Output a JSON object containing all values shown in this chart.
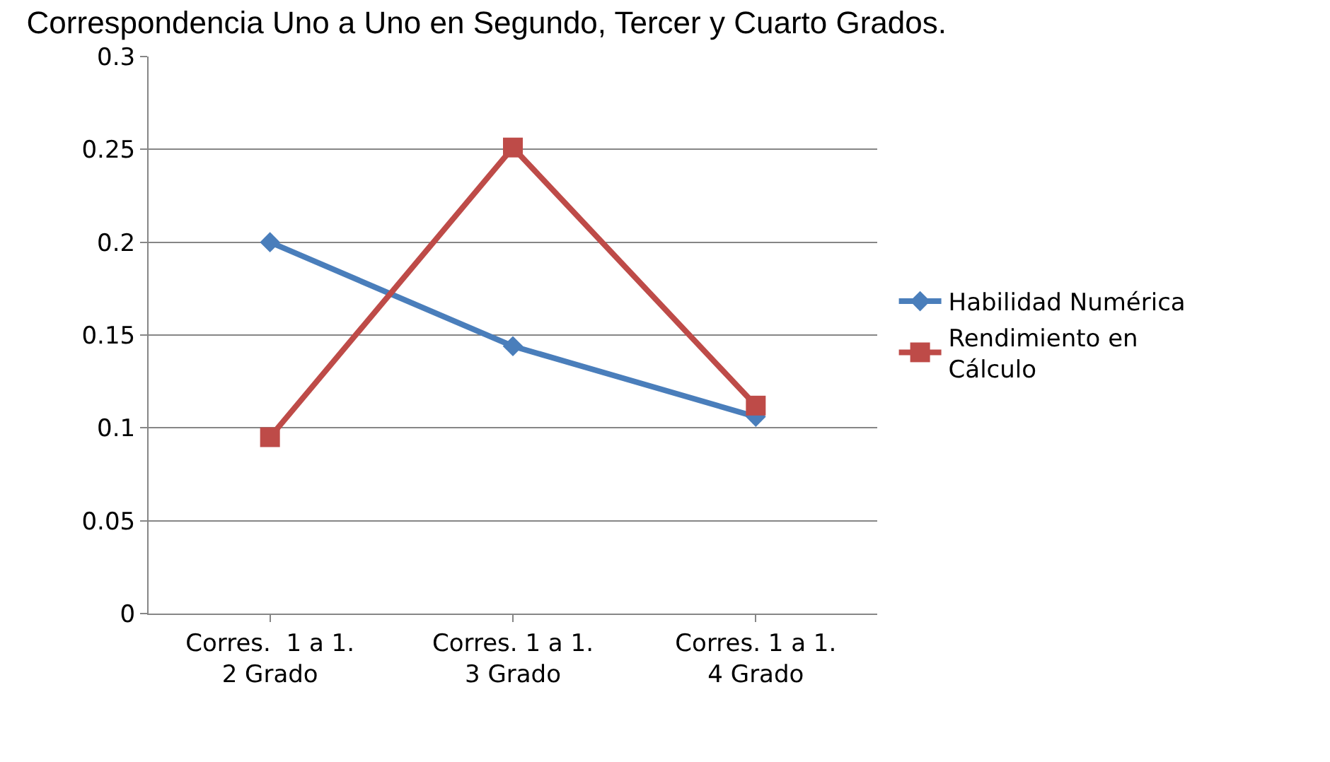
{
  "chart_data": {
    "type": "line",
    "title": "Correspondencia Uno a Uno en Segundo, Tercer y Cuarto Grados.",
    "categories": [
      "Corres.  1 a 1.\n2 Grado",
      "Corres. 1 a 1.\n3 Grado",
      "Corres. 1 a 1.\n4 Grado"
    ],
    "series": [
      {
        "name": "Habilidad Numérica",
        "color": "#4a7ebb",
        "marker": "diamond",
        "values": [
          0.2,
          0.144,
          0.106
        ]
      },
      {
        "name": "Rendimiento en\nCálculo",
        "color": "#be4b48",
        "marker": "square",
        "values": [
          0.095,
          0.251,
          0.112
        ]
      }
    ],
    "ylim": [
      0,
      0.3
    ],
    "yticks": [
      0,
      0.05,
      0.1,
      0.15,
      0.2,
      0.25,
      0.3
    ],
    "grid": "y",
    "legend": "right",
    "line_style": "solid"
  }
}
